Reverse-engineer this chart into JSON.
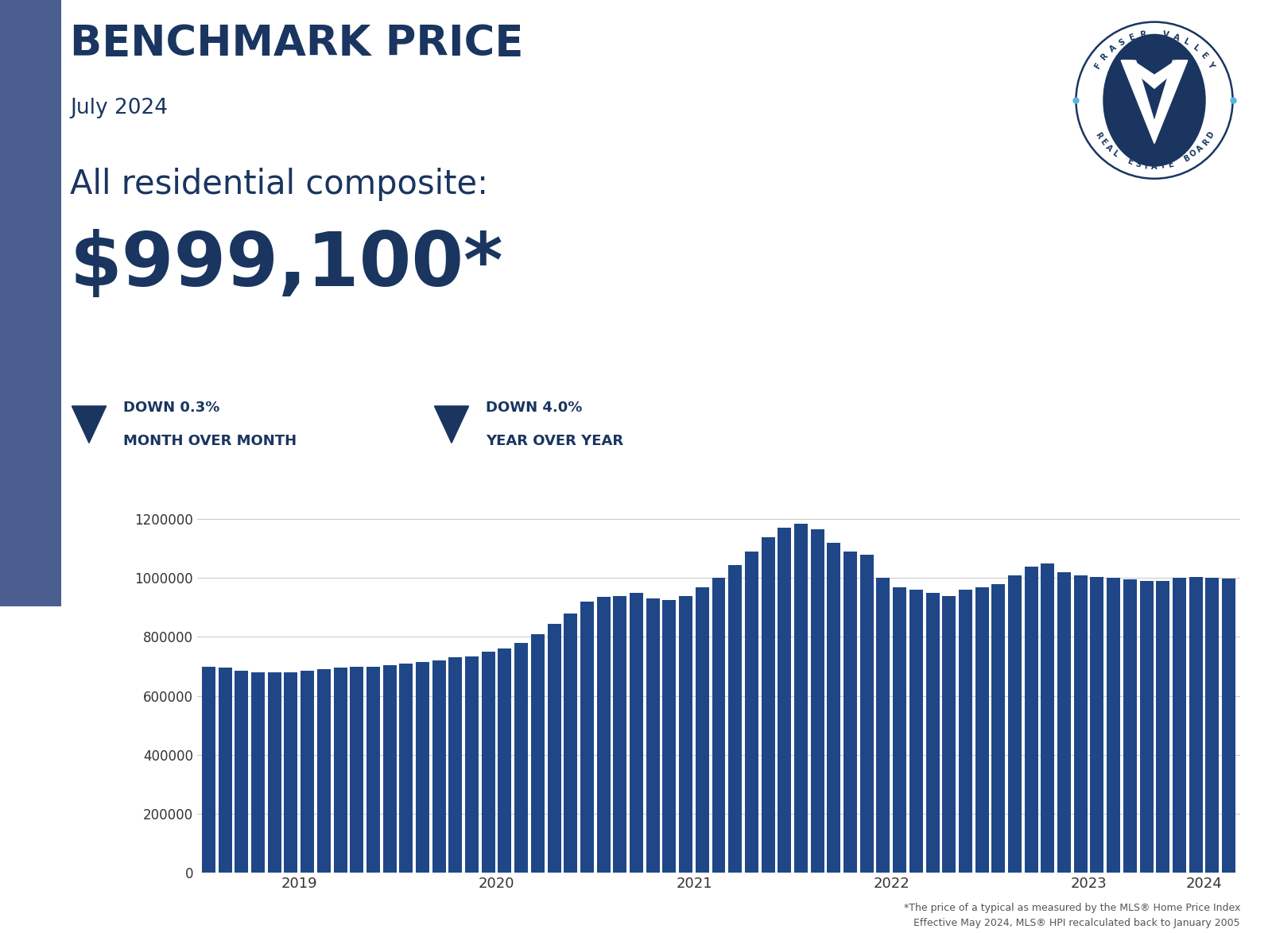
{
  "title": "BENCHMARK PRICE",
  "subtitle": "July 2024",
  "composite_label": "All residential composite:",
  "composite_value": "$999,100*",
  "stat1_pct": "0.3%",
  "stat1_label": "MONTH OVER MONTH",
  "stat2_pct": "4.0%",
  "stat2_label": "YEAR OVER YEAR",
  "bar_color": "#1f4788",
  "background_color": "#ffffff",
  "title_color": "#1a3560",
  "footnote": "*The price of a typical as measured by the MLS® Home Price Index\nEffective May 2024, MLS® HPI recalculated back to January 2005",
  "ylim": [
    0,
    1300000
  ],
  "yticks": [
    0,
    200000,
    400000,
    600000,
    800000,
    1000000,
    1200000
  ],
  "bar_values": [
    700000,
    695000,
    685000,
    680000,
    680000,
    680000,
    685000,
    690000,
    695000,
    700000,
    700000,
    705000,
    710000,
    715000,
    720000,
    730000,
    735000,
    750000,
    760000,
    780000,
    810000,
    845000,
    880000,
    920000,
    935000,
    940000,
    950000,
    930000,
    925000,
    940000,
    970000,
    1000000,
    1045000,
    1090000,
    1140000,
    1170000,
    1185000,
    1165000,
    1120000,
    1090000,
    1080000,
    1000000,
    970000,
    960000,
    950000,
    940000,
    960000,
    970000,
    980000,
    1010000,
    1040000,
    1050000,
    1020000,
    1010000,
    1005000,
    1000000,
    995000,
    990000,
    990000,
    1000000,
    1005000,
    1000000,
    999100
  ],
  "x_labels": [
    "2019",
    "2020",
    "2021",
    "2022",
    "2023",
    "2024"
  ],
  "left_bar_color": "#4a5e8f",
  "logo_circle_color": "#1a3560",
  "logo_dot_color": "#5ab4e5",
  "logo_text_top": "FRASER VALLEY",
  "logo_text_bottom": "REAL ESTATE BOARD"
}
